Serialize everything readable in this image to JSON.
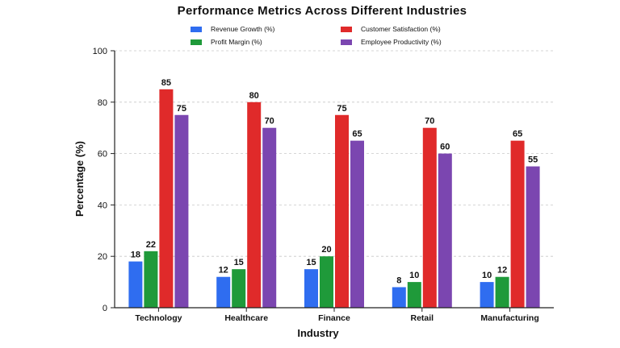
{
  "chart_data": {
    "type": "bar",
    "title": "Performance Metrics Across Different Industries",
    "xlabel": "Industry",
    "ylabel": "Percentage (%)",
    "categories": [
      "Technology",
      "Healthcare",
      "Finance",
      "Retail",
      "Manufacturing"
    ],
    "series": [
      {
        "name": "Revenue  Growth (%)",
        "color": "#2f6df0",
        "values": [
          18,
          12,
          15,
          8,
          10
        ]
      },
      {
        "name": "Profit Margin (%)",
        "color": "#1f9a3a",
        "values": [
          22,
          15,
          20,
          10,
          12
        ]
      },
      {
        "name": "Customer Satisfaction (%)",
        "color": "#e02a2a",
        "values": [
          85,
          80,
          75,
          70,
          65
        ]
      },
      {
        "name": "Employee Productivity (%)",
        "color": "#7b46b0",
        "values": [
          75,
          70,
          65,
          60,
          55
        ]
      }
    ],
    "ylim": [
      0,
      100
    ],
    "yticks": [
      0,
      20,
      40,
      60,
      80,
      100
    ],
    "grid": true,
    "legend_position": "top"
  }
}
